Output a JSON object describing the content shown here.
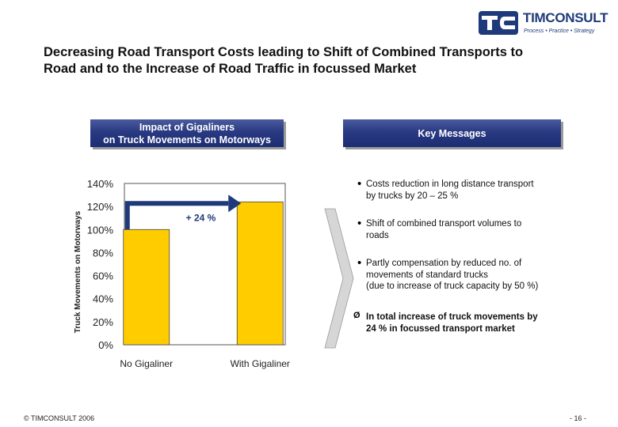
{
  "brand": {
    "name": "TIMCONSULT",
    "tagline": "Process • Practice • Strategy",
    "color": "#1f3a7a"
  },
  "title": {
    "line1": "Decreasing Road Transport Costs leading to Shift of Combined Transports to",
    "line2": "Road and to the Increase of Road Traffic in focussed Market"
  },
  "left_panel": {
    "line1": "Impact of Gigaliners",
    "line2": "on Truck Movements on Motorways"
  },
  "right_panel": {
    "label": "Key Messages"
  },
  "chart_data": {
    "type": "bar",
    "categories": [
      "No Gigaliner",
      "With Gigaliner"
    ],
    "values": [
      100,
      124
    ],
    "ylabel": "Truck Movements on Motorways",
    "ylim": [
      0,
      140
    ],
    "yticks": [
      "0%",
      "20%",
      "40%",
      "60%",
      "80%",
      "100%",
      "120%",
      "140%"
    ],
    "annotation": "+ 24 %",
    "bar_color": "#ffcc00",
    "arrow_color": "#1f3a7a",
    "grid": false
  },
  "messages": {
    "bullet": "•",
    "items": [
      {
        "line1": "Costs reduction in long distance transport",
        "line2": "by trucks by 20 – 25 %"
      },
      {
        "line1": "Shift of combined transport volumes to",
        "line2": "roads"
      },
      {
        "line1": "Partly compensation by reduced no. of",
        "line2": "movements of standard trucks",
        "line3": "(due to increase of truck capacity by 50 %)"
      }
    ],
    "conclusion_marker": "Ø",
    "conclusion_line1": "In total increase of truck movements by",
    "conclusion_line2": "24 % in focussed transport market"
  },
  "footer": {
    "copyright": "© TIMCONSULT 2006",
    "page": "- 16 -"
  }
}
